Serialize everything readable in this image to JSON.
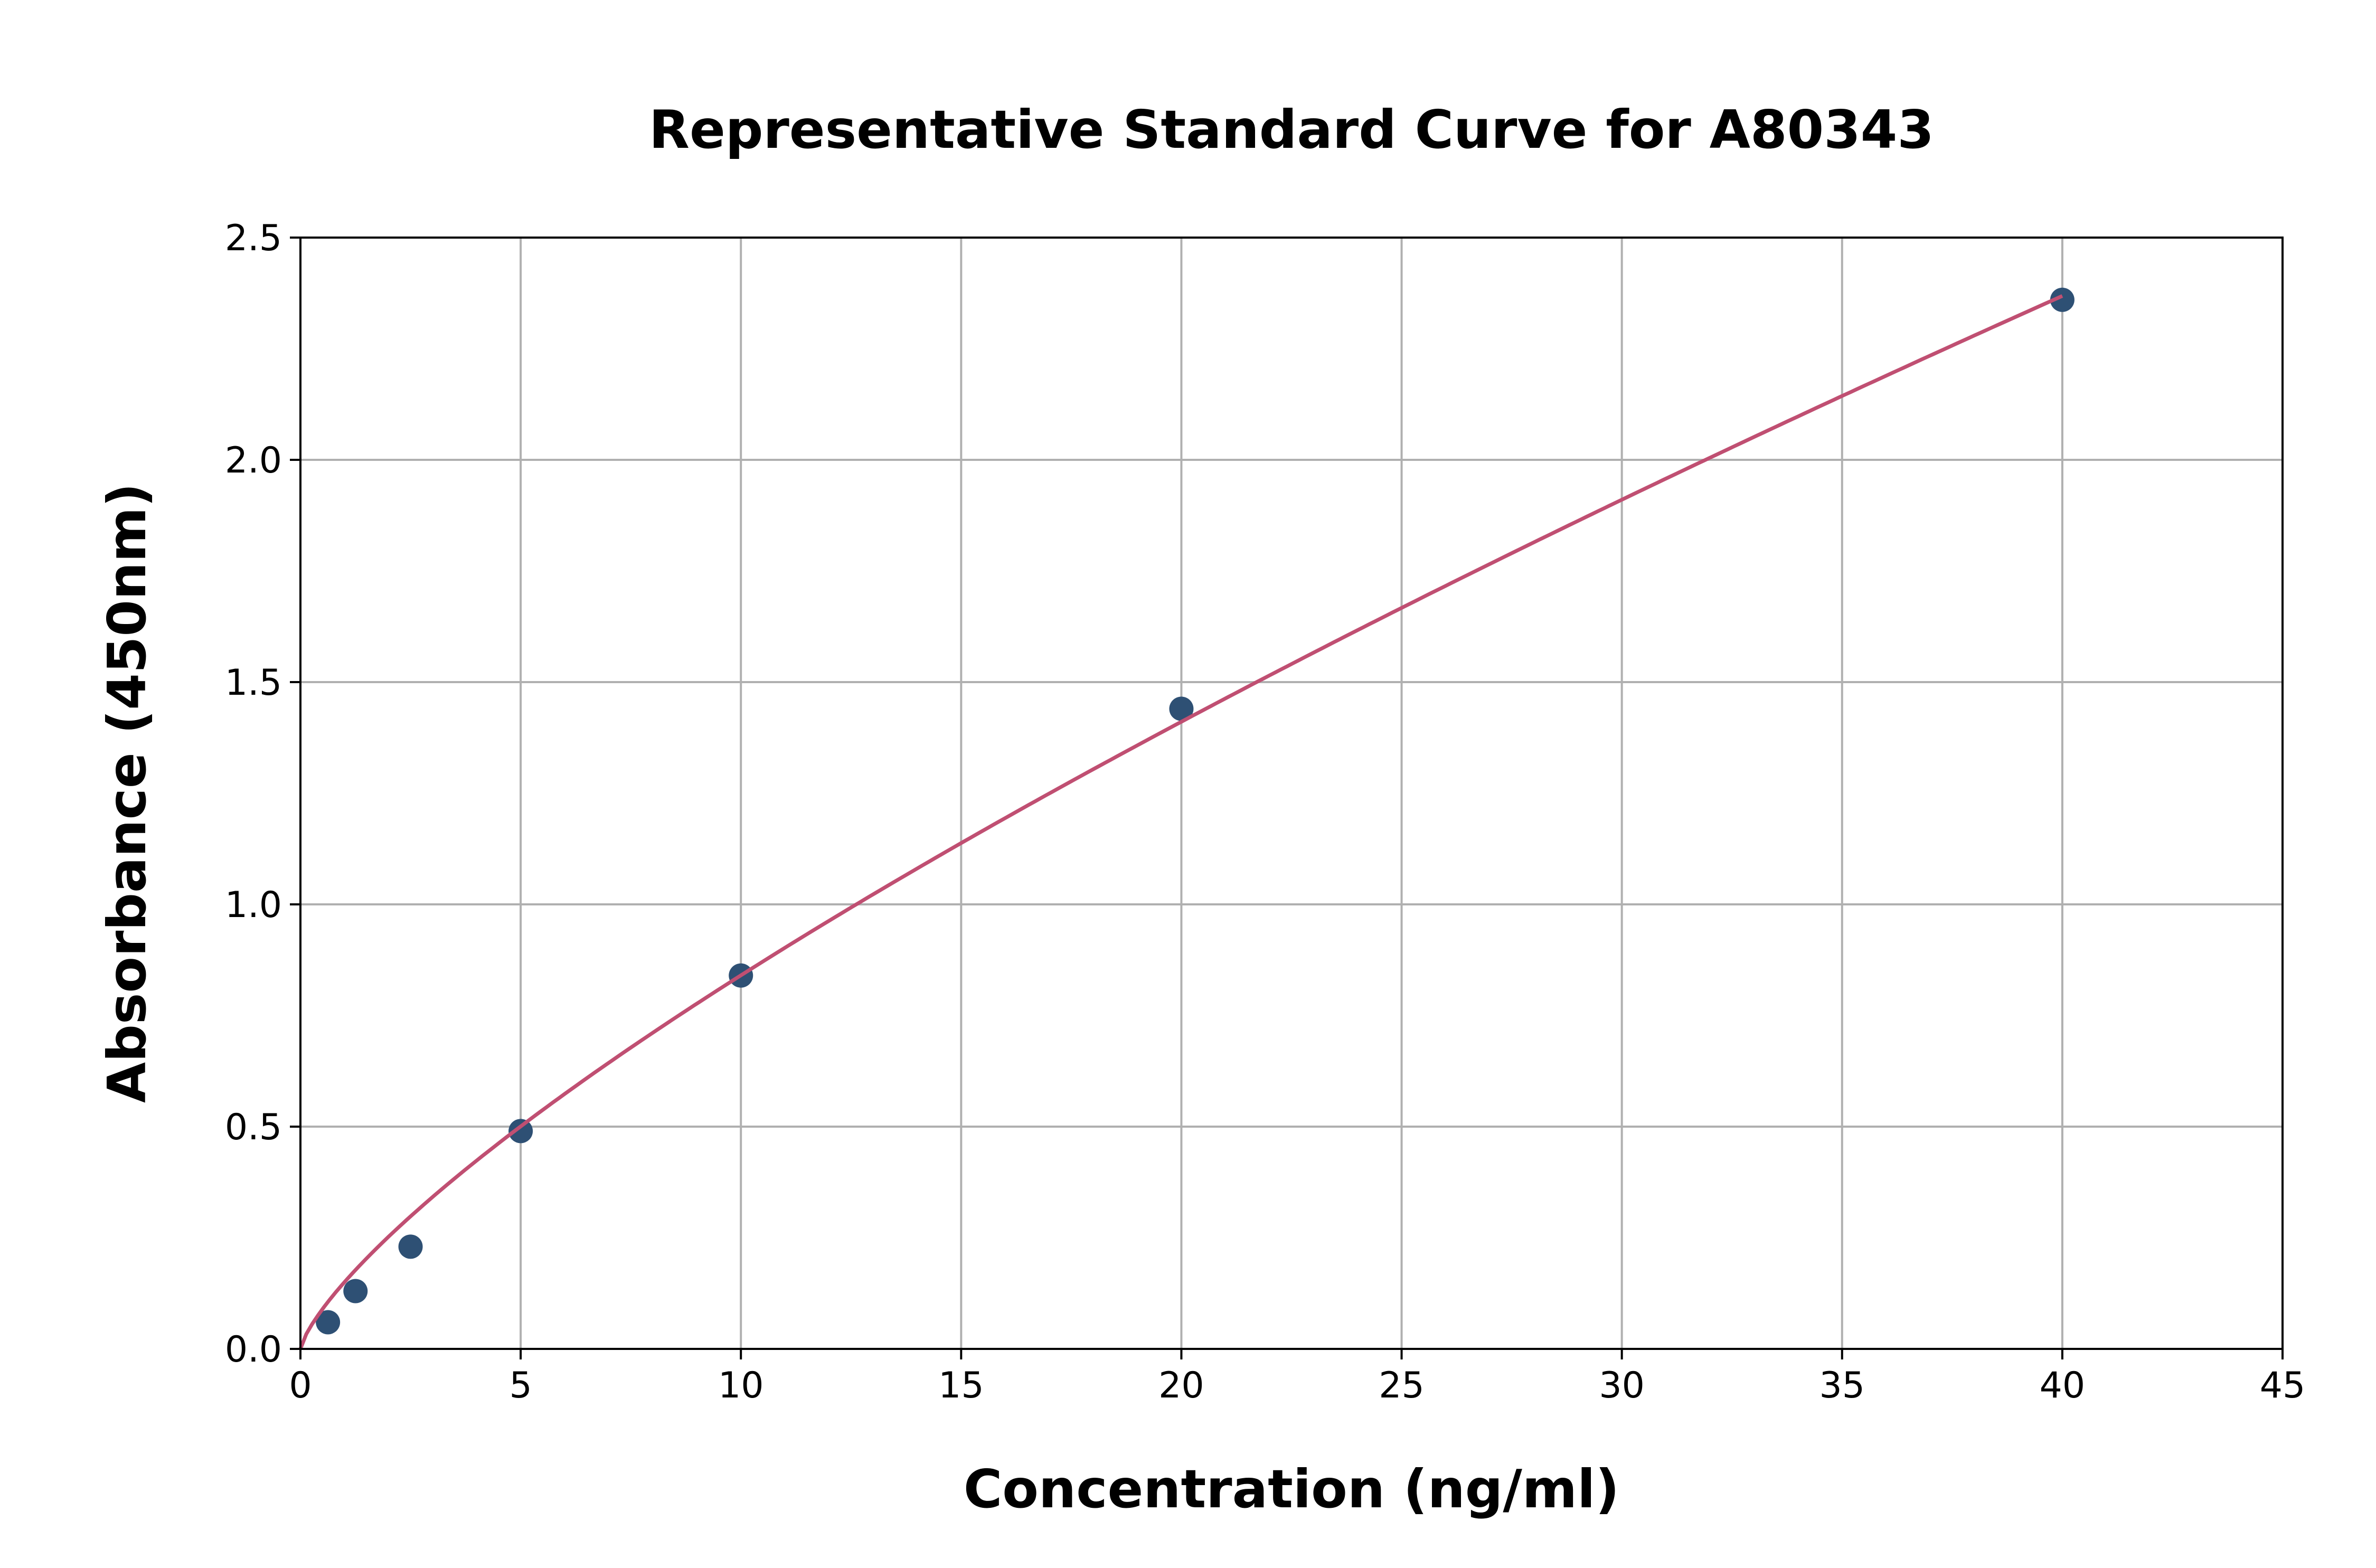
{
  "chart_data": {
    "type": "scatter",
    "title": "Representative Standard Curve for A80343",
    "xlabel": "Concentration (ng/ml)",
    "ylabel": "Absorbance (450nm)",
    "xlim": [
      0,
      45
    ],
    "ylim": [
      0,
      2.5
    ],
    "xticks": [
      "0",
      "5",
      "10",
      "15",
      "20",
      "25",
      "30",
      "35",
      "40",
      "45"
    ],
    "yticks": [
      "0.0",
      "0.5",
      "1.0",
      "1.5",
      "2.0",
      "2.5"
    ],
    "grid": true,
    "points": {
      "x": [
        0.625,
        1.25,
        2.5,
        5,
        10,
        20,
        40
      ],
      "y": [
        0.06,
        0.13,
        0.23,
        0.49,
        0.84,
        1.44,
        2.36
      ]
    },
    "fit_line": {
      "x_range": [
        0,
        40
      ]
    },
    "colors": {
      "points": "#2e5074",
      "fit_line": "#c04f72",
      "grid": "#b0b0b0"
    }
  }
}
